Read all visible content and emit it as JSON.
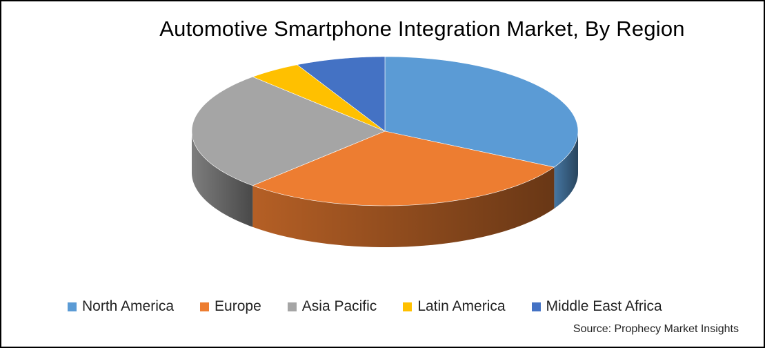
{
  "chart_data": {
    "type": "pie",
    "title": "Automotive Smartphone Integration Market, By Region",
    "style": "3d-exploded-none",
    "categories": [
      "North America",
      "Europe",
      "Asia Pacific",
      "Latin America",
      "Middle East Africa"
    ],
    "values": [
      33,
      29,
      26,
      4.5,
      7.5
    ],
    "unit": "%",
    "colors": [
      "#5B9BD5",
      "#ED7D31",
      "#A5A5A5",
      "#FFC000",
      "#4472C4"
    ],
    "legend_position": "bottom",
    "source": "Source: Prophecy Market Insights"
  }
}
